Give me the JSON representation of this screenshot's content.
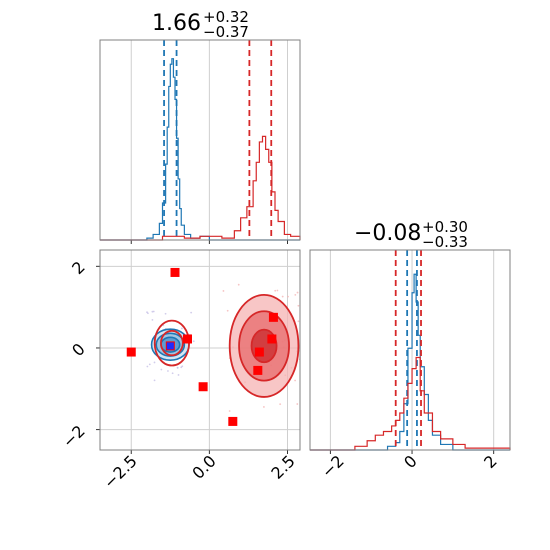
{
  "chart_data": [
    {
      "panel": "hist-x",
      "type": "line",
      "title": {
        "main": "1.66",
        "sup": "+0.32",
        "sub": "−0.37"
      },
      "xlim": [
        -3.5,
        2.9
      ],
      "grid": true,
      "series": [
        {
          "color": "#1f77b4",
          "x": [
            -3.5,
            -2.5,
            -2.0,
            -1.8,
            -1.6,
            -1.5,
            -1.4,
            -1.35,
            -1.3,
            -1.25,
            -1.2,
            -1.15,
            -1.1,
            -1.05,
            -1.0,
            -0.95,
            -0.9,
            -0.8,
            -0.6,
            -0.3,
            0.0,
            2.9
          ],
          "y": [
            0.0,
            0.0,
            0.01,
            0.03,
            0.09,
            0.2,
            0.41,
            0.61,
            0.83,
            0.95,
            0.98,
            0.88,
            0.76,
            0.55,
            0.33,
            0.17,
            0.08,
            0.03,
            0.01,
            0.02,
            0.0,
            0.0
          ],
          "vlines": [
            -1.45,
            -1.05
          ]
        },
        {
          "color": "#d62728",
          "x": [
            -3.5,
            -2.8,
            -1.5,
            -0.8,
            -0.3,
            0.4,
            0.8,
            1.0,
            1.2,
            1.4,
            1.5,
            1.6,
            1.7,
            1.8,
            1.9,
            2.0,
            2.1,
            2.2,
            2.4,
            2.6,
            2.9
          ],
          "y": [
            0.0,
            0.0,
            0.02,
            0.01,
            0.02,
            0.01,
            0.05,
            0.12,
            0.18,
            0.32,
            0.42,
            0.53,
            0.56,
            0.49,
            0.42,
            0.26,
            0.16,
            0.1,
            0.03,
            0.02,
            0.0
          ],
          "vlines": [
            1.28,
            1.98
          ]
        }
      ]
    },
    {
      "panel": "scatter",
      "type": "scatter",
      "xlim": [
        -3.5,
        2.9
      ],
      "ylim": [
        -2.5,
        2.4
      ],
      "xticks": [
        "−2.5",
        "0.0",
        "2.5"
      ],
      "yticks": [
        "−2",
        "0",
        "2"
      ],
      "grid": true,
      "contours": [
        {
          "color": "#1f77b4",
          "cx": -1.25,
          "cy": 0.08,
          "radii_x": [
            0.3,
            0.45,
            0.6
          ],
          "radii_y": [
            0.18,
            0.28,
            0.38
          ]
        },
        {
          "color": "#d62728",
          "cx": -1.2,
          "cy": 0.12,
          "radii_x": [
            0.35,
            0.55
          ],
          "radii_y": [
            0.3,
            0.55
          ]
        },
        {
          "color": "#d62728",
          "cx": 1.75,
          "cy": 0.05,
          "radii_x": [
            0.4,
            0.8,
            1.1
          ],
          "radii_y": [
            0.4,
            0.85,
            1.25
          ]
        }
      ],
      "points": {
        "color": "#ff0000",
        "x": [
          -2.5,
          -1.1,
          -0.7,
          -1.25,
          -0.2,
          0.75,
          2.05,
          2.0,
          1.6,
          1.55
        ],
        "y": [
          -0.1,
          1.85,
          0.22,
          0.05,
          -0.95,
          -1.8,
          0.75,
          0.22,
          -0.1,
          -0.55
        ]
      },
      "blue_point": {
        "x": -1.25,
        "y": 0.05
      }
    },
    {
      "panel": "hist-y",
      "type": "line",
      "title": {
        "main": "−0.08",
        "sup": "+0.30",
        "sub": "−0.33"
      },
      "xlim": [
        -2.5,
        2.4
      ],
      "xticks": [
        "−2",
        "0",
        "2"
      ],
      "grid": true,
      "series": [
        {
          "color": "#1f77b4",
          "x": [
            -2.5,
            -1.0,
            -0.6,
            -0.4,
            -0.3,
            -0.2,
            -0.1,
            0.0,
            0.05,
            0.1,
            0.15,
            0.2,
            0.3,
            0.4,
            0.5,
            0.7,
            1.0,
            2.4
          ],
          "y": [
            0.0,
            0.0,
            0.02,
            0.04,
            0.1,
            0.25,
            0.55,
            0.85,
            0.95,
            0.8,
            0.62,
            0.45,
            0.3,
            0.16,
            0.08,
            0.03,
            0.0,
            0.0
          ],
          "vlines": [
            -0.12,
            0.12
          ]
        },
        {
          "color": "#d62728",
          "x": [
            -2.5,
            -1.8,
            -1.4,
            -1.1,
            -0.9,
            -0.7,
            -0.5,
            -0.4,
            -0.3,
            -0.2,
            -0.1,
            0.0,
            0.1,
            0.2,
            0.3,
            0.5,
            0.7,
            1.0,
            1.3,
            2.4
          ],
          "y": [
            0.0,
            0.0,
            0.02,
            0.05,
            0.08,
            0.1,
            0.13,
            0.16,
            0.2,
            0.28,
            0.36,
            0.44,
            0.5,
            0.32,
            0.2,
            0.1,
            0.06,
            0.03,
            0.01,
            0.0
          ],
          "vlines": [
            -0.4,
            0.22
          ]
        }
      ]
    }
  ]
}
